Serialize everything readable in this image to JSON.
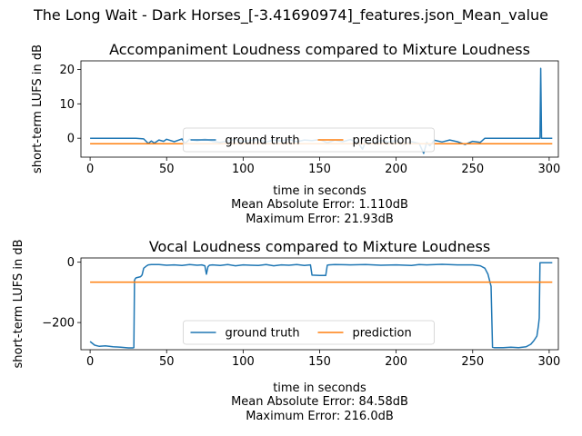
{
  "suptitle": "The Long Wait - Dark Horses_[-3.41690974]_features.json_Mean_value",
  "chart_data": [
    {
      "type": "line",
      "title": "Accompaniment Loudness compared to Mixture Loudness",
      "xlabel": "time in seconds",
      "ylabel": "short-term LUFS in dB",
      "xlim": [
        -6,
        306
      ],
      "ylim": [
        -5.5,
        22.5
      ],
      "xticks": [
        0,
        50,
        100,
        150,
        200,
        250,
        300
      ],
      "yticks": [
        0,
        10,
        20
      ],
      "stats": [
        "Mean Absolute Error: 1.110dB",
        "Maximum Error: 21.93dB"
      ],
      "legend": {
        "placement": "lower-center",
        "ncol": 2
      },
      "colors": {
        "ground_truth": "#1f77b4",
        "prediction": "#ff7f0e"
      },
      "series": [
        {
          "name": "ground truth",
          "x": [
            0,
            10,
            20,
            30,
            35,
            38,
            40,
            42,
            45,
            48,
            50,
            55,
            60,
            62,
            65,
            70,
            75,
            80,
            85,
            90,
            95,
            100,
            105,
            110,
            115,
            120,
            125,
            130,
            135,
            140,
            145,
            150,
            155,
            160,
            165,
            170,
            175,
            178,
            180,
            185,
            190,
            195,
            200,
            205,
            210,
            215,
            218,
            220,
            222,
            225,
            230,
            235,
            240,
            245,
            250,
            255,
            258,
            260,
            270,
            280,
            290,
            294,
            294.5,
            295,
            295.5,
            296,
            300,
            302
          ],
          "values": [
            0,
            0,
            0,
            0,
            -0.2,
            -1.5,
            -0.8,
            -1.4,
            -0.5,
            -0.9,
            -0.3,
            -1.0,
            -0.2,
            -1.5,
            -0.3,
            -0.8,
            -0.2,
            -0.9,
            -1.2,
            -0.8,
            -0.3,
            -1.0,
            -0.6,
            -0.4,
            -1.1,
            -0.5,
            -0.8,
            -0.3,
            -1.0,
            -0.5,
            -0.7,
            -0.4,
            -1.3,
            -0.6,
            -1.0,
            -0.4,
            -1.2,
            -3.2,
            -1.0,
            -1.5,
            -0.6,
            -1.1,
            -0.7,
            -1.8,
            -1.0,
            -1.5,
            -4.4,
            -1.2,
            -2.2,
            -0.6,
            -1.1,
            -0.5,
            -1.0,
            -1.8,
            -0.9,
            -1.2,
            0,
            0,
            0,
            0,
            0,
            0,
            20.3,
            0,
            0,
            0,
            0,
            0
          ]
        },
        {
          "name": "prediction",
          "x": [
            0,
            302
          ],
          "values": [
            -1.6,
            -1.6
          ]
        }
      ]
    },
    {
      "type": "line",
      "title": "Vocal Loudness compared to Mixture Loudness",
      "xlabel": "time in seconds",
      "ylabel": "short-term LUFS in dB",
      "xlim": [
        -6,
        306
      ],
      "ylim": [
        -290,
        14
      ],
      "xticks": [
        0,
        50,
        100,
        150,
        200,
        250,
        300
      ],
      "yticks": [
        -200,
        0
      ],
      "stats": [
        "Mean Absolute Error: 84.58dB",
        "Maximum Error: 216.0dB"
      ],
      "legend": {
        "placement": "lower-center",
        "ncol": 2
      },
      "colors": {
        "ground_truth": "#1f77b4",
        "prediction": "#ff7f0e"
      },
      "series": [
        {
          "name": "ground truth",
          "x": [
            0,
            3,
            6,
            10,
            15,
            20,
            25,
            28,
            28.6,
            29,
            29.5,
            30,
            33,
            34,
            35,
            37,
            38,
            40,
            45,
            50,
            55,
            60,
            65,
            70,
            73,
            75,
            76,
            77,
            78,
            80,
            85,
            90,
            95,
            100,
            105,
            110,
            115,
            120,
            125,
            130,
            135,
            140,
            144,
            145,
            150,
            154,
            155,
            156,
            160,
            170,
            180,
            190,
            200,
            210,
            215,
            220,
            230,
            240,
            250,
            255,
            258,
            260,
            262,
            263,
            264,
            265,
            270,
            275,
            280,
            285,
            288,
            290,
            292,
            293,
            293.5,
            294,
            295,
            300,
            302
          ],
          "values": [
            -263,
            -275,
            -279,
            -277,
            -280,
            -282,
            -284,
            -284,
            -283,
            -60,
            -55,
            -52,
            -48,
            -42,
            -20,
            -12,
            -9,
            -8,
            -8,
            -10,
            -9,
            -11,
            -8,
            -10,
            -9,
            -12,
            -40,
            -15,
            -10,
            -9,
            -11,
            -8,
            -12,
            -9,
            -10,
            -11,
            -8,
            -12,
            -9,
            -10,
            -8,
            -11,
            -9,
            -43,
            -44,
            -44,
            -10,
            -9,
            -8,
            -9,
            -8,
            -10,
            -9,
            -11,
            -8,
            -9,
            -7,
            -9,
            -9,
            -12,
            -20,
            -40,
            -80,
            -282,
            -283,
            -283,
            -283,
            -282,
            -283,
            -280,
            -272,
            -260,
            -245,
            -210,
            -185,
            -2,
            -2,
            -2,
            -2
          ]
        },
        {
          "name": "prediction",
          "x": [
            0,
            302
          ],
          "values": [
            -66,
            -66
          ]
        }
      ]
    }
  ]
}
